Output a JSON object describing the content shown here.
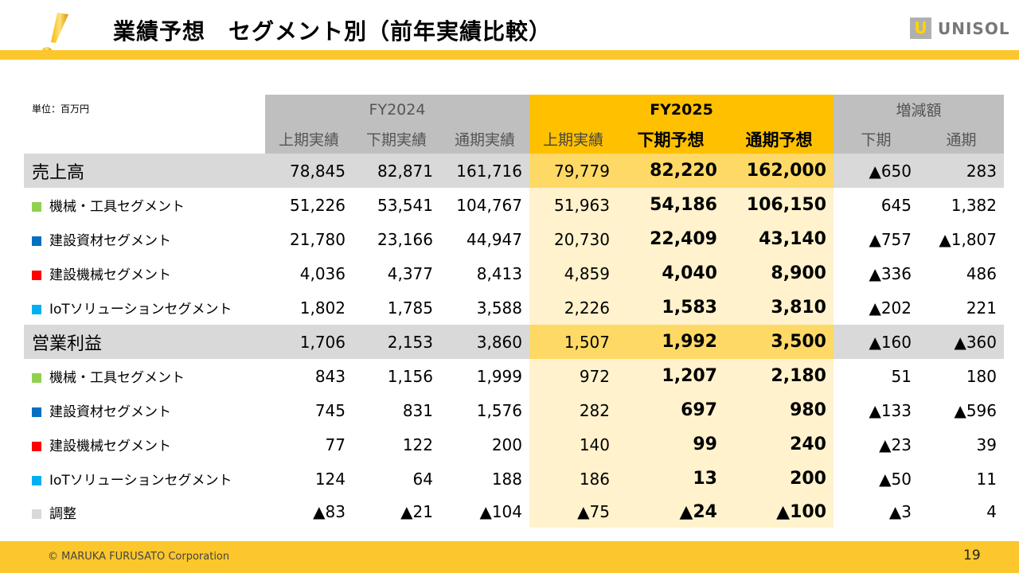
{
  "header": {
    "title": "業績予想　セグメント別（前年実績比較）",
    "logo_text": "UNISOL",
    "logo_mark": "U"
  },
  "table": {
    "unit": "単位：百万円",
    "groups": [
      "FY2024",
      "FY2025",
      "増減額"
    ],
    "columns": [
      "上期実績",
      "下期実績",
      "通期実績",
      "上期実績",
      "下期予想",
      "通期予想",
      "下期",
      "通期"
    ],
    "rows": [
      {
        "label": "売上高",
        "type": "total",
        "values": [
          "78,845",
          "82,871",
          "161,716",
          "79,779",
          "82,220",
          "162,000",
          "▲650",
          "283"
        ]
      },
      {
        "label": "機械・工具セグメント",
        "type": "seg",
        "color": "#92D050",
        "values": [
          "51,226",
          "53,541",
          "104,767",
          "51,963",
          "54,186",
          "106,150",
          "645",
          "1,382"
        ]
      },
      {
        "label": "建設資材セグメント",
        "type": "seg",
        "color": "#0070C0",
        "values": [
          "21,780",
          "23,166",
          "44,947",
          "20,730",
          "22,409",
          "43,140",
          "▲757",
          "▲1,807"
        ]
      },
      {
        "label": "建設機械セグメント",
        "type": "seg",
        "color": "#FF0000",
        "values": [
          "4,036",
          "4,377",
          "8,413",
          "4,859",
          "4,040",
          "8,900",
          "▲336",
          "486"
        ]
      },
      {
        "label": "IoTソリューションセグメント",
        "type": "seg",
        "color": "#00B0F0",
        "values": [
          "1,802",
          "1,785",
          "3,588",
          "2,226",
          "1,583",
          "3,810",
          "▲202",
          "221"
        ]
      },
      {
        "label": "営業利益",
        "type": "total",
        "values": [
          "1,706",
          "2,153",
          "3,860",
          "1,507",
          "1,992",
          "3,500",
          "▲160",
          "▲360"
        ]
      },
      {
        "label": "機械・工具セグメント",
        "type": "seg",
        "color": "#92D050",
        "values": [
          "843",
          "1,156",
          "1,999",
          "972",
          "1,207",
          "2,180",
          "51",
          "180"
        ]
      },
      {
        "label": "建設資材セグメント",
        "type": "seg",
        "color": "#0070C0",
        "values": [
          "745",
          "831",
          "1,576",
          "282",
          "697",
          "980",
          "▲133",
          "▲596"
        ]
      },
      {
        "label": "建設機械セグメント",
        "type": "seg",
        "color": "#FF0000",
        "values": [
          "77",
          "122",
          "200",
          "140",
          "99",
          "240",
          "▲23",
          "39"
        ]
      },
      {
        "label": "IoTソリューションセグメント",
        "type": "seg",
        "color": "#00B0F0",
        "values": [
          "124",
          "64",
          "188",
          "186",
          "13",
          "200",
          "▲50",
          "11"
        ]
      },
      {
        "label": "調整",
        "type": "seg",
        "color": "#D9D9D9",
        "values": [
          "▲83",
          "▲21",
          "▲104",
          "▲75",
          "▲24",
          "▲100",
          "▲3",
          "4"
        ]
      }
    ]
  },
  "footer": {
    "copyright": "© MARUKA FURUSATO Corporation",
    "page": "19"
  }
}
